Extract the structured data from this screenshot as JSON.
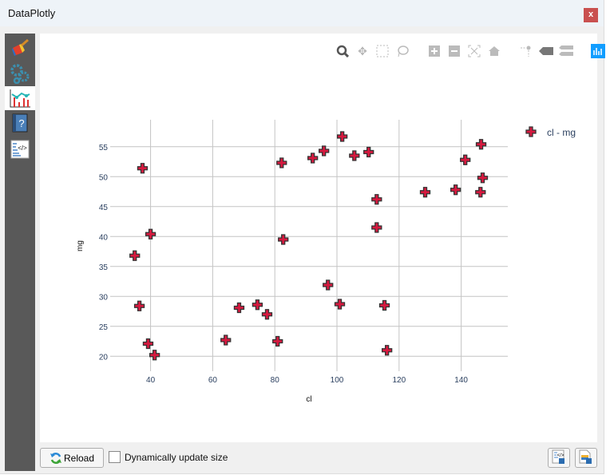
{
  "window": {
    "title": "DataPlotly",
    "close_label": "x"
  },
  "sidebar": {
    "items": [
      {
        "name": "style-icon"
      },
      {
        "name": "settings-icon"
      },
      {
        "name": "plot-icon",
        "active": true
      },
      {
        "name": "help-icon"
      },
      {
        "name": "code-icon"
      }
    ]
  },
  "toolbar": {
    "icons": [
      "zoom-icon",
      "pan-icon",
      "box-select-icon",
      "lasso-select-icon",
      "zoom-in-icon",
      "zoom-out-icon",
      "autoscale-icon",
      "reset-axes-icon",
      "spike-lines-icon",
      "hover-closest-icon",
      "hover-compare-icon",
      "plotly-logo-icon"
    ]
  },
  "bottom": {
    "reload_label": "Reload",
    "dynamic_label": "Dynamically update size",
    "dynamic_checked": false
  },
  "chart_data": {
    "type": "scatter",
    "xlabel": "cl",
    "ylabel": "mg",
    "xlim": [
      27,
      155
    ],
    "ylim": [
      17.5,
      59.5
    ],
    "xticks": [
      40,
      60,
      80,
      100,
      120,
      140
    ],
    "yticks": [
      20,
      25,
      30,
      35,
      40,
      45,
      50,
      55
    ],
    "grid": true,
    "legend_position": "top-right",
    "marker": "cross",
    "series": [
      {
        "name": "cl - mg",
        "color": "#d7193f",
        "points": [
          [
            37.4,
            51.4
          ],
          [
            40.0,
            40.4
          ],
          [
            34.9,
            36.8
          ],
          [
            36.4,
            28.4
          ],
          [
            39.2,
            22.1
          ],
          [
            41.3,
            20.2
          ],
          [
            64.2,
            22.7
          ],
          [
            68.5,
            28.1
          ],
          [
            74.4,
            28.6
          ],
          [
            77.5,
            27.0
          ],
          [
            80.9,
            22.5
          ],
          [
            82.2,
            52.3
          ],
          [
            82.7,
            39.5
          ],
          [
            92.2,
            53.1
          ],
          [
            95.8,
            54.3
          ],
          [
            101.7,
            56.7
          ],
          [
            105.6,
            53.5
          ],
          [
            110.2,
            54.1
          ],
          [
            112.8,
            46.2
          ],
          [
            112.8,
            41.5
          ],
          [
            97.1,
            31.9
          ],
          [
            100.9,
            28.7
          ],
          [
            115.3,
            28.5
          ],
          [
            116.1,
            21.0
          ],
          [
            128.4,
            47.4
          ],
          [
            138.2,
            47.8
          ],
          [
            141.3,
            52.8
          ],
          [
            146.4,
            55.4
          ],
          [
            146.9,
            49.8
          ],
          [
            146.2,
            47.4
          ]
        ]
      }
    ]
  }
}
